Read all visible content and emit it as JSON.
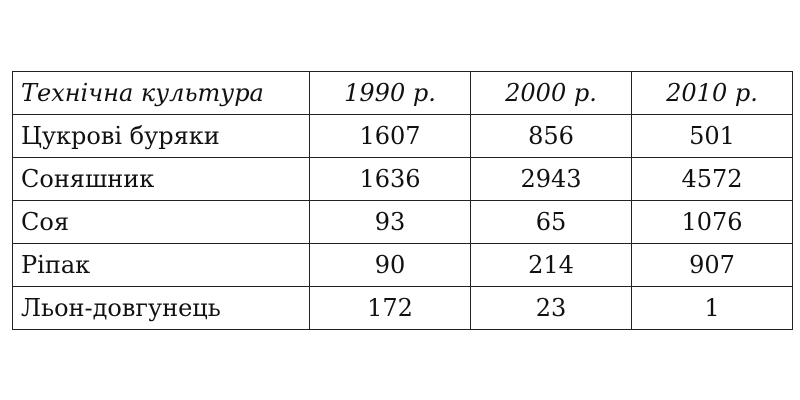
{
  "table": {
    "headers": [
      "Технічна культура",
      "1990 р.",
      "2000 р.",
      "2010 р."
    ],
    "rows": [
      {
        "name": "Цукрові буряки",
        "values": [
          "1607",
          "856",
          "501"
        ]
      },
      {
        "name": "Соняшник",
        "values": [
          "1636",
          "2943",
          "4572"
        ]
      },
      {
        "name": "Соя",
        "values": [
          "93",
          "65",
          "1076"
        ]
      },
      {
        "name": "Ріпак",
        "values": [
          "90",
          "214",
          "907"
        ]
      },
      {
        "name": "Льон-довгунець",
        "values": [
          "172",
          "23",
          "1"
        ]
      }
    ]
  }
}
